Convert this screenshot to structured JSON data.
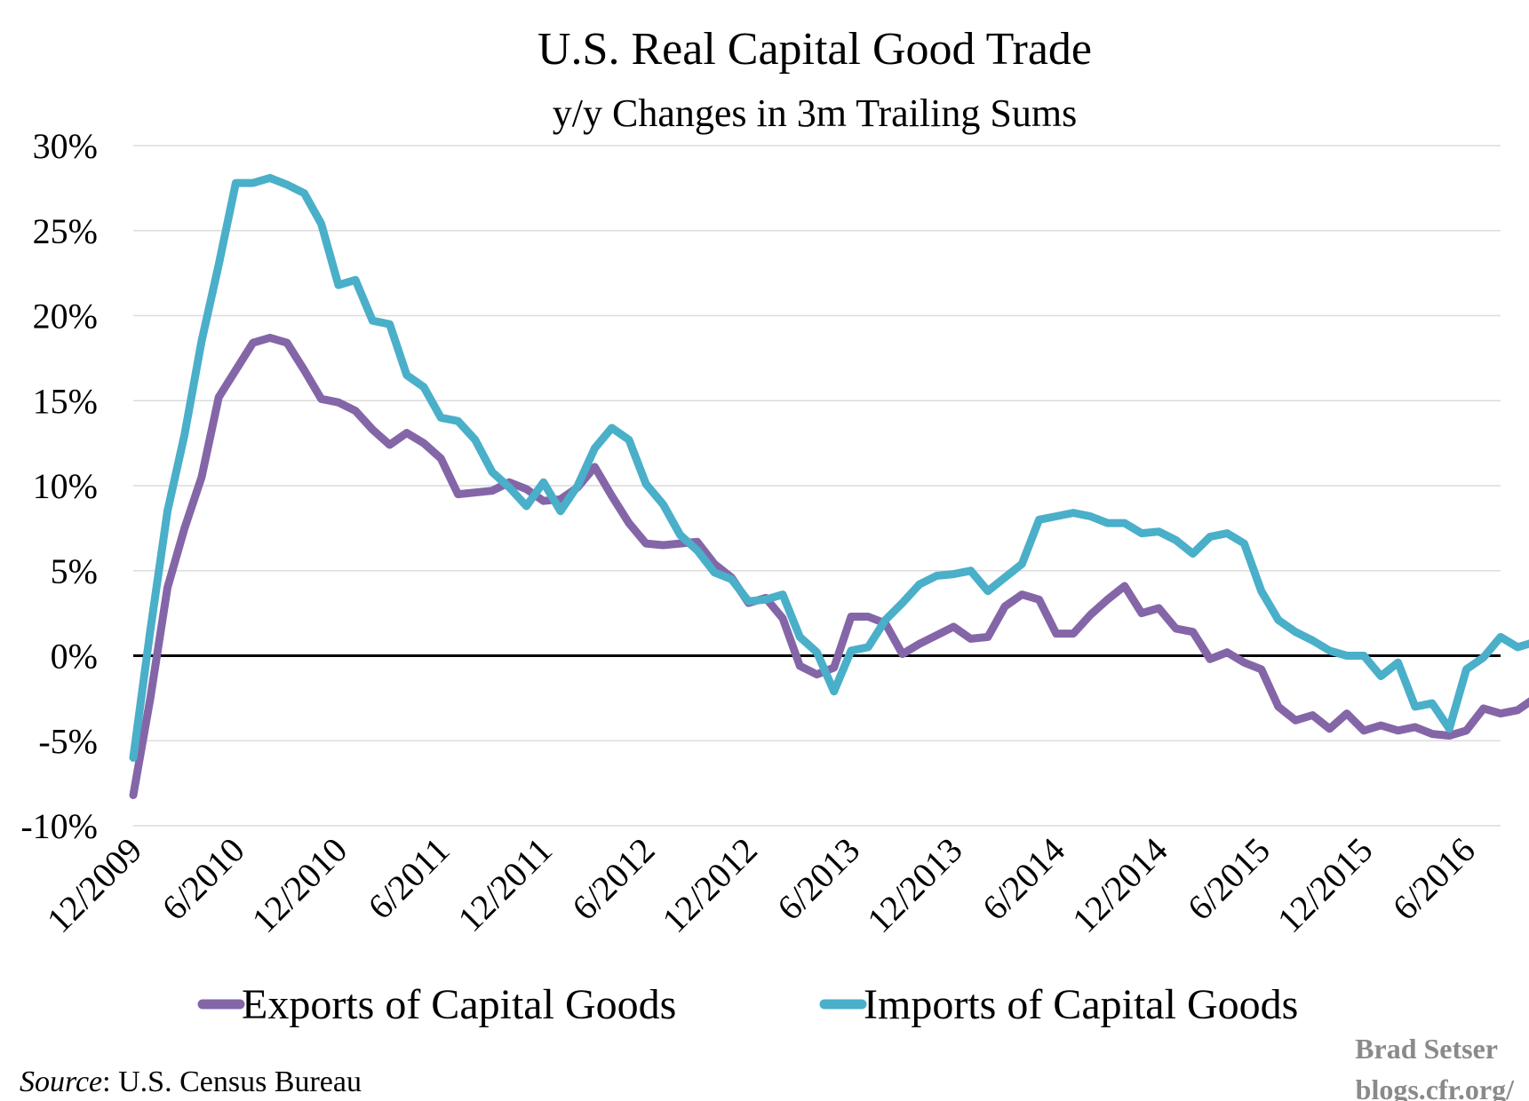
{
  "chart_data": {
    "type": "line",
    "title": "U.S. Real Capital Good Trade",
    "subtitle": "y/y Changes in 3m Trailing Sums",
    "xlabel": "",
    "ylabel": "",
    "ylim": [
      -10,
      30
    ],
    "y_ticks": [
      30,
      25,
      20,
      15,
      10,
      5,
      0,
      -5,
      -10
    ],
    "y_tick_labels": [
      "30%",
      "25%",
      "20%",
      "15%",
      "10%",
      "5%",
      "0%",
      "-5%",
      "-10%"
    ],
    "x_tick_labels": [
      "12/2009",
      "6/2010",
      "12/2010",
      "6/2011",
      "12/2011",
      "6/2012",
      "12/2012",
      "6/2013",
      "12/2013",
      "6/2014",
      "12/2014",
      "6/2015",
      "12/2015",
      "6/2016"
    ],
    "x_tick_months": [
      0,
      6,
      12,
      18,
      24,
      30,
      36,
      42,
      48,
      54,
      60,
      66,
      72,
      78
    ],
    "x_month_max": 80,
    "grid": true,
    "zero_line": true,
    "legend_position": "bottom",
    "series": [
      {
        "name": "Exports of Capital Goods",
        "color": "#8466a8",
        "values": [
          -8.2,
          -2.5,
          4,
          7.5,
          10.5,
          15.2,
          16.8,
          18.4,
          18.7,
          18.4,
          16.8,
          15.1,
          14.9,
          14.4,
          13.3,
          12.4,
          13.1,
          12.5,
          11.6,
          9.5,
          9.6,
          9.7,
          10.2,
          9.8,
          9.1,
          9.2,
          9.9,
          11.1,
          9.4,
          7.8,
          6.6,
          6.5,
          6.6,
          6.7,
          5.4,
          4.6,
          3.1,
          3.4,
          2.2,
          -0.6,
          -1.1,
          -0.7,
          2.3,
          2.3,
          1.9,
          0.1,
          0.7,
          1.2,
          1.7,
          1.0,
          1.1,
          2.9,
          3.6,
          3.3,
          1.3,
          1.3,
          2.4,
          3.3,
          4.1,
          2.5,
          2.8,
          1.6,
          1.4,
          -0.2,
          0.2,
          -0.4,
          -0.8,
          -3.0,
          -3.8,
          -3.5,
          -4.3,
          -3.4,
          -4.4,
          -4.1,
          -4.4,
          -4.2,
          -4.6,
          -4.7,
          -4.4,
          -3.1,
          -3.4,
          -3.2,
          -2.5
        ]
      },
      {
        "name": "Imports of Capital Goods",
        "color": "#4aafc9",
        "values": [
          -6.0,
          1.5,
          8.5,
          13,
          18.5,
          23,
          27.8,
          27.8,
          28.1,
          27.7,
          27.2,
          25.4,
          21.8,
          22.1,
          19.7,
          19.5,
          16.5,
          15.8,
          14.0,
          13.8,
          12.7,
          10.8,
          9.9,
          8.8,
          10.2,
          8.5,
          10.0,
          12.2,
          13.4,
          12.7,
          10.1,
          8.9,
          7.1,
          6.2,
          4.9,
          4.5,
          3.2,
          3.3,
          3.6,
          1.1,
          0.2,
          -2.1,
          0.3,
          0.5,
          2.1,
          3.1,
          4.2,
          4.7,
          4.8,
          5.0,
          3.8,
          4.6,
          5.4,
          8.0,
          8.2,
          8.4,
          8.2,
          7.8,
          7.8,
          7.2,
          7.3,
          6.8,
          6.0,
          7.0,
          7.2,
          6.6,
          3.8,
          2.1,
          1.4,
          0.9,
          0.3,
          0.0,
          0.0,
          -1.2,
          -0.4,
          -3.0,
          -2.8,
          -4.3,
          -0.8,
          -0.1,
          1.1,
          0.5,
          0.8
        ]
      }
    ]
  },
  "source": {
    "label": "Source",
    "text": ": U.S. Census Bureau"
  },
  "credit": {
    "author": "Brad Setser",
    "site": "blogs.cfr.org/"
  }
}
